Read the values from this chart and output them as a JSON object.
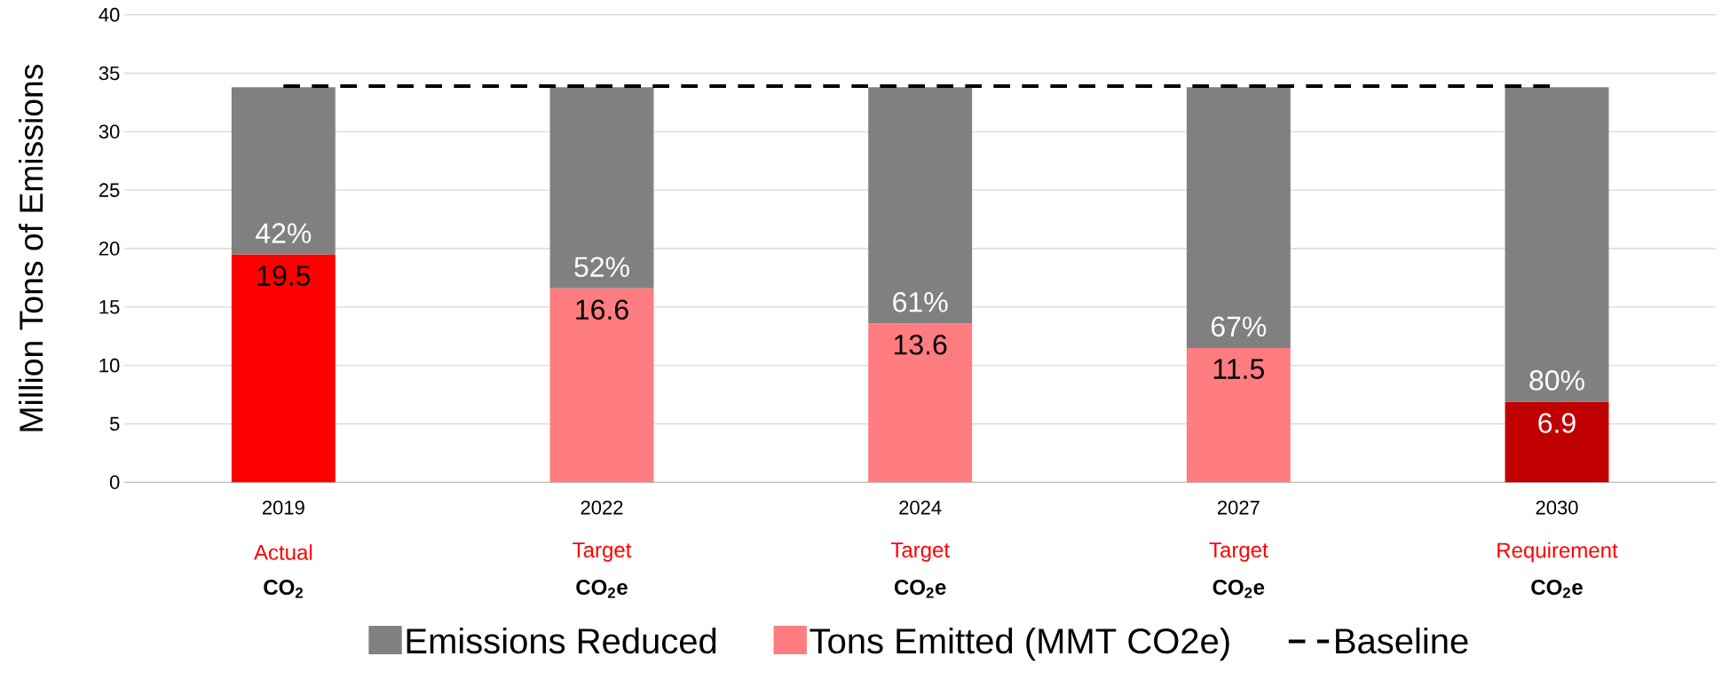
{
  "chart_data": {
    "type": "bar",
    "stacked": true,
    "ylabel": "Million Tons of Emissions",
    "categories": [
      "2019",
      "2022",
      "2024",
      "2027",
      "2030"
    ],
    "series": [
      {
        "name": "Tons Emitted (MMT CO2e)",
        "color": "#ff7c80",
        "colors": [
          "#ff0000",
          "#ff7c80",
          "#ff7c80",
          "#ff7c80",
          "#c00000"
        ],
        "values": [
          19.5,
          16.6,
          13.6,
          11.5,
          6.9
        ],
        "value_labels": [
          "19.5",
          "16.6",
          "13.6",
          "11.5",
          "6.9"
        ]
      },
      {
        "name": "Emissions Reduced",
        "color": "#808080",
        "values": [
          14.3,
          17.2,
          20.2,
          22.3,
          26.9
        ]
      }
    ],
    "ylim": [
      0,
      40
    ],
    "yticks": [
      0,
      5,
      10,
      15,
      20,
      25,
      30,
      35,
      40
    ],
    "grid": "y",
    "legend": "bottom",
    "ref_lines": [
      {
        "axis": "y",
        "value": 33.9,
        "label": "Baseline",
        "color": "#000000",
        "line_style": "dashed"
      }
    ],
    "annotations": [
      {
        "text": "42%",
        "x": "2019",
        "y": 19.5
      },
      {
        "text": "52%",
        "x": "2022",
        "y": 16.6
      },
      {
        "text": "61%",
        "x": "2024",
        "y": 13.6
      },
      {
        "text": "67%",
        "x": "2027",
        "y": 11.5
      },
      {
        "text": "80%",
        "x": "2030",
        "y": 6.9
      },
      "Actual",
      "**CO$_{2}$**",
      "Target",
      "**CO$_{2}$e**",
      "Target",
      "**CO$_{2}$e**",
      "Target",
      "**CO$_{2}$e**",
      "Requirement",
      "**CO$_{2}$e**"
    ]
  }
}
